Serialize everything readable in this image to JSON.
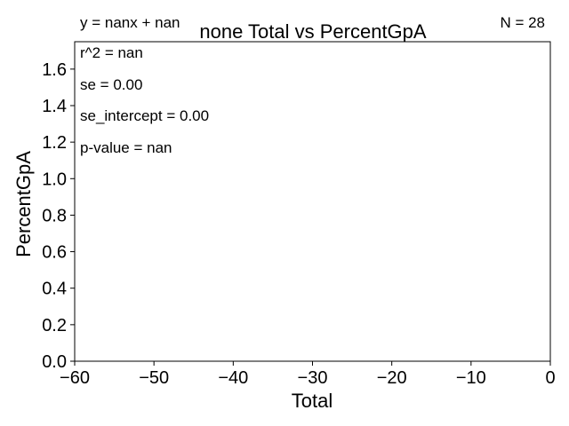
{
  "chart_data": {
    "type": "scatter",
    "title": "none Total vs PercentGpA",
    "xlabel": "Total",
    "ylabel": "PercentGpA",
    "xlim": [
      -60,
      0
    ],
    "ylim": [
      0,
      1.75
    ],
    "xticks": [
      -60,
      -50,
      -40,
      -30,
      -20,
      -10,
      0
    ],
    "xtick_labels": [
      "−60",
      "−50",
      "−40",
      "−30",
      "−20",
      "−10",
      "0"
    ],
    "yticks": [
      0,
      0.2,
      0.4,
      0.6,
      0.8,
      1.0,
      1.2,
      1.4,
      1.6
    ],
    "ytick_labels": [
      "0.0",
      "0.2",
      "0.4",
      "0.6",
      "0.8",
      "1.0",
      "1.2",
      "1.4",
      "1.6"
    ],
    "grid": false,
    "series": [
      {
        "x": [],
        "y": []
      }
    ],
    "annotations": {
      "equation": "y = nanx + nan",
      "r2": "r^2 = nan",
      "se": "se = 0.00",
      "se_intercept": "se_intercept = 0.00",
      "p_value": "p-value = nan",
      "n": "N = 28"
    }
  }
}
